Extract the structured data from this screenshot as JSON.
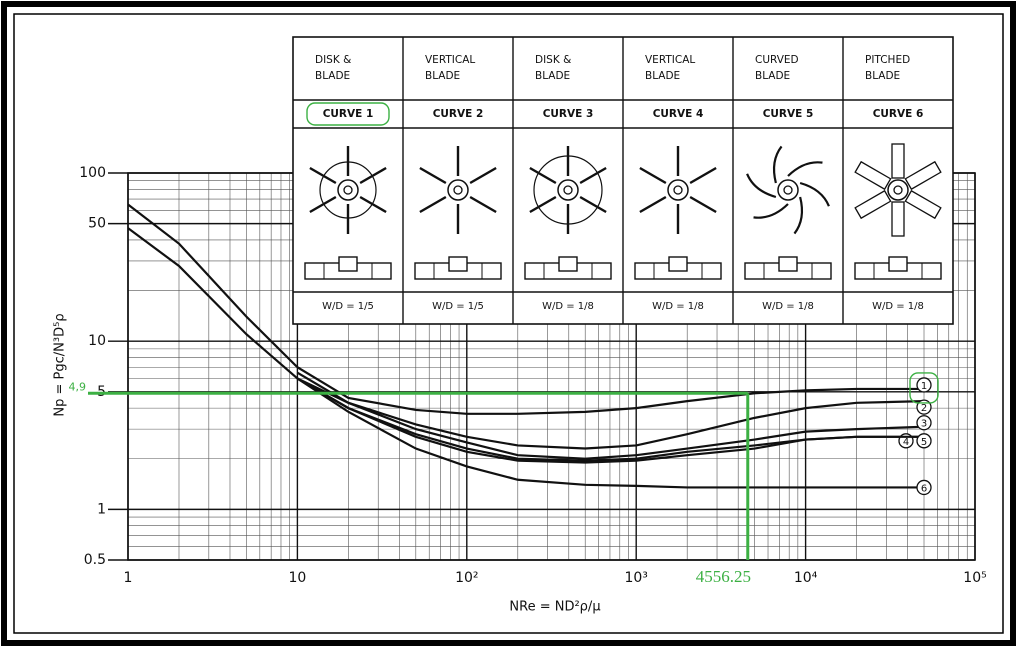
{
  "chart_data": {
    "type": "line",
    "x_label": "NRe = ND²ρ/μ",
    "y_label": "Np = Pgc/N³D⁵ρ",
    "log_x": true,
    "log_y": true,
    "grid": true,
    "minor_grid": true,
    "xlim": [
      1,
      100000
    ],
    "ylim": [
      0.5,
      100
    ],
    "xticks": [
      1,
      10,
      {
        "value": 100,
        "label": "10²"
      },
      {
        "value": 1000,
        "label": "10³"
      },
      {
        "value": 10000,
        "label": "10⁴"
      },
      {
        "value": 100000,
        "label": "10⁵"
      }
    ],
    "yticks": [
      0.5,
      1,
      5,
      10,
      50,
      100
    ],
    "x": [
      1,
      2,
      5,
      10,
      20,
      50,
      100,
      200,
      500,
      1000,
      2000,
      5000,
      10000,
      20000,
      50000
    ],
    "series": [
      {
        "name": "1",
        "color": "#111111",
        "values": [
          65,
          38,
          14,
          7,
          4.6,
          3.9,
          3.7,
          3.7,
          3.8,
          4.0,
          4.4,
          4.9,
          5.1,
          5.2,
          5.2
        ]
      },
      {
        "name": "2",
        "color": "#111111",
        "values": [
          47,
          28,
          11,
          6,
          4.3,
          3.2,
          2.7,
          2.4,
          2.3,
          2.4,
          2.8,
          3.5,
          4.0,
          4.3,
          4.4
        ]
      },
      {
        "name": "3",
        "color": "#111111",
        "values": [
          null,
          null,
          null,
          6.5,
          4.3,
          3.0,
          2.5,
          2.1,
          2.0,
          2.1,
          2.3,
          2.6,
          2.9,
          3.0,
          3.1
        ]
      },
      {
        "name": "4",
        "color": "#111111",
        "values": [
          null,
          null,
          null,
          6,
          4.0,
          2.8,
          2.3,
          2.0,
          1.95,
          2.0,
          2.2,
          2.4,
          2.6,
          2.7,
          2.7
        ]
      },
      {
        "name": "5",
        "color": "#111111",
        "values": [
          null,
          null,
          null,
          6,
          4.0,
          2.7,
          2.2,
          1.95,
          1.9,
          1.95,
          2.1,
          2.3,
          2.6,
          2.7,
          2.7
        ]
      },
      {
        "name": "6",
        "color": "#111111",
        "values": [
          null,
          null,
          null,
          6,
          3.8,
          2.3,
          1.8,
          1.5,
          1.4,
          1.38,
          1.35,
          1.35,
          1.35,
          1.35,
          1.35
        ]
      }
    ],
    "annotation": {
      "color": "#3cb043",
      "x": {
        "value": 4556.25,
        "label": "4556.25"
      },
      "y": {
        "value": 4.9,
        "label": "4,9"
      }
    },
    "table": [
      {
        "type": [
          "DISK &",
          "BLADE"
        ],
        "curve": "CURVE 1",
        "ratio": "W/D = 1/5"
      },
      {
        "type": [
          "VERTICAL",
          "BLADE"
        ],
        "curve": "CURVE 2",
        "ratio": "W/D = 1/5"
      },
      {
        "type": [
          "DISK &",
          "BLADE"
        ],
        "curve": "CURVE 3",
        "ratio": "W/D = 1/8"
      },
      {
        "type": [
          "VERTICAL",
          "BLADE"
        ],
        "curve": "CURVE 4",
        "ratio": "W/D = 1/8"
      },
      {
        "type": [
          "CURVED",
          "BLADE"
        ],
        "curve": "CURVE 5",
        "ratio": "W/D = 1/8"
      },
      {
        "type": [
          "PITCHED",
          "BLADE"
        ],
        "curve": "CURVE 6",
        "ratio": "W/D = 1/8"
      }
    ]
  }
}
